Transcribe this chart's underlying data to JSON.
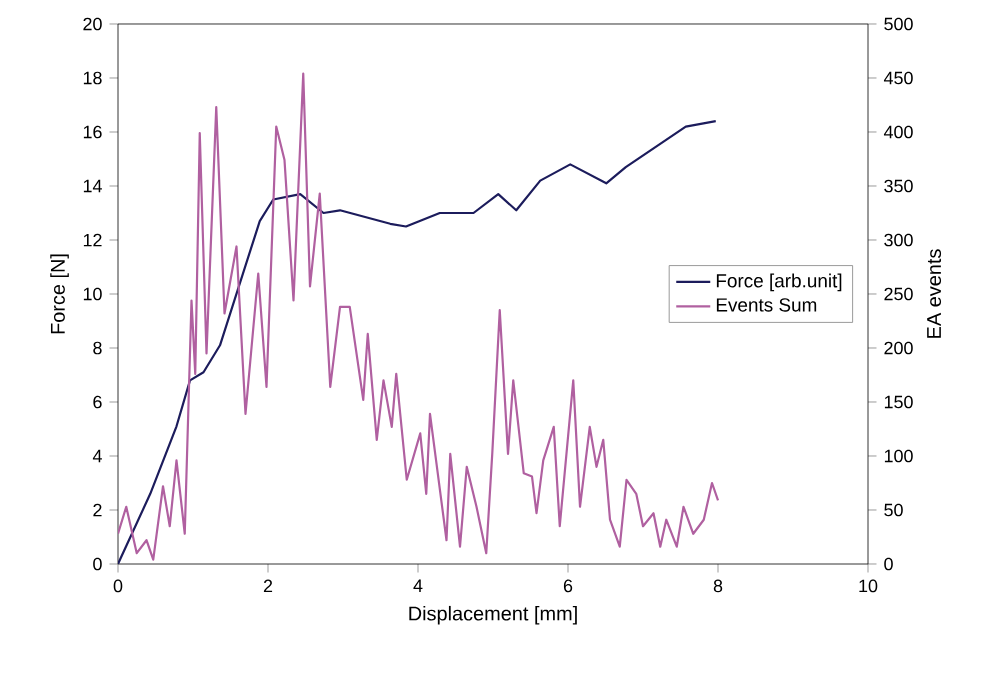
{
  "chart_data": {
    "type": "line",
    "xlabel": "Displacement [mm]",
    "ylabel": "Force [N]",
    "y2label": "EA events",
    "xlim": [
      0,
      10
    ],
    "xticks": [
      0,
      2,
      4,
      6,
      8,
      10
    ],
    "ylim": [
      0,
      20
    ],
    "yticks": [
      0,
      2,
      4,
      6,
      8,
      10,
      12,
      14,
      16,
      18,
      20
    ],
    "y2lim": [
      0,
      500
    ],
    "y2ticks": [
      0,
      50,
      100,
      150,
      200,
      250,
      300,
      350,
      400,
      450,
      500
    ],
    "legend": "right",
    "grid": false,
    "marker": "none",
    "line_style": "solid",
    "series": [
      {
        "name": "Force [arb.unit]",
        "color": "#1c1c5c",
        "x": [
          0,
          0.43,
          0.78,
          0.96,
          1.14,
          1.36,
          1.89,
          2.07,
          2.43,
          2.74,
          2.96,
          3.63,
          3.84,
          4.29,
          4.74,
          5.07,
          5.31,
          5.63,
          6.03,
          6.51,
          6.77,
          7.57,
          7.97
        ],
        "values": [
          0,
          2.6,
          5.1,
          6.8,
          7.1,
          8.1,
          12.7,
          13.5,
          13.7,
          13.0,
          13.1,
          12.6,
          12.5,
          13.0,
          13.0,
          13.7,
          13.1,
          14.2,
          14.8,
          14.1,
          14.7,
          16.2,
          16.4
        ]
      },
      {
        "name": "Events Sum",
        "color": "#b060a0",
        "axis": "y2",
        "x": [
          0,
          0.11,
          0.25,
          0.38,
          0.47,
          0.6,
          0.69,
          0.78,
          0.89,
          0.98,
          1.03,
          1.09,
          1.18,
          1.31,
          1.42,
          1.58,
          1.7,
          1.87,
          1.98,
          2.11,
          2.22,
          2.34,
          2.47,
          2.56,
          2.69,
          2.83,
          2.96,
          3.09,
          3.27,
          3.33,
          3.45,
          3.54,
          3.65,
          3.71,
          3.85,
          4.03,
          4.11,
          4.16,
          4.38,
          4.43,
          4.56,
          4.65,
          4.78,
          4.91,
          4.99,
          5.09,
          5.2,
          5.27,
          5.41,
          5.52,
          5.58,
          5.67,
          5.81,
          5.89,
          6.07,
          6.16,
          6.29,
          6.38,
          6.47,
          6.56,
          6.69,
          6.78,
          6.91,
          7.0,
          7.14,
          7.23,
          7.31,
          7.45,
          7.54,
          7.67,
          7.81,
          7.92,
          8.0
        ],
        "values": [
          28,
          53,
          10,
          22,
          4,
          72,
          35,
          96,
          28,
          244,
          176,
          399,
          195,
          423,
          232,
          294,
          139,
          269,
          164,
          405,
          374,
          244,
          454,
          257,
          343,
          164,
          238,
          238,
          152,
          213,
          115,
          170,
          127,
          176,
          78,
          121,
          65,
          139,
          22,
          102,
          16,
          90,
          53,
          10,
          102,
          235,
          102,
          170,
          84,
          81,
          47,
          96,
          127,
          35,
          170,
          53,
          127,
          90,
          115,
          41,
          16,
          78,
          65,
          35,
          47,
          16,
          41,
          16,
          53,
          28,
          41,
          75,
          59
        ]
      }
    ]
  }
}
